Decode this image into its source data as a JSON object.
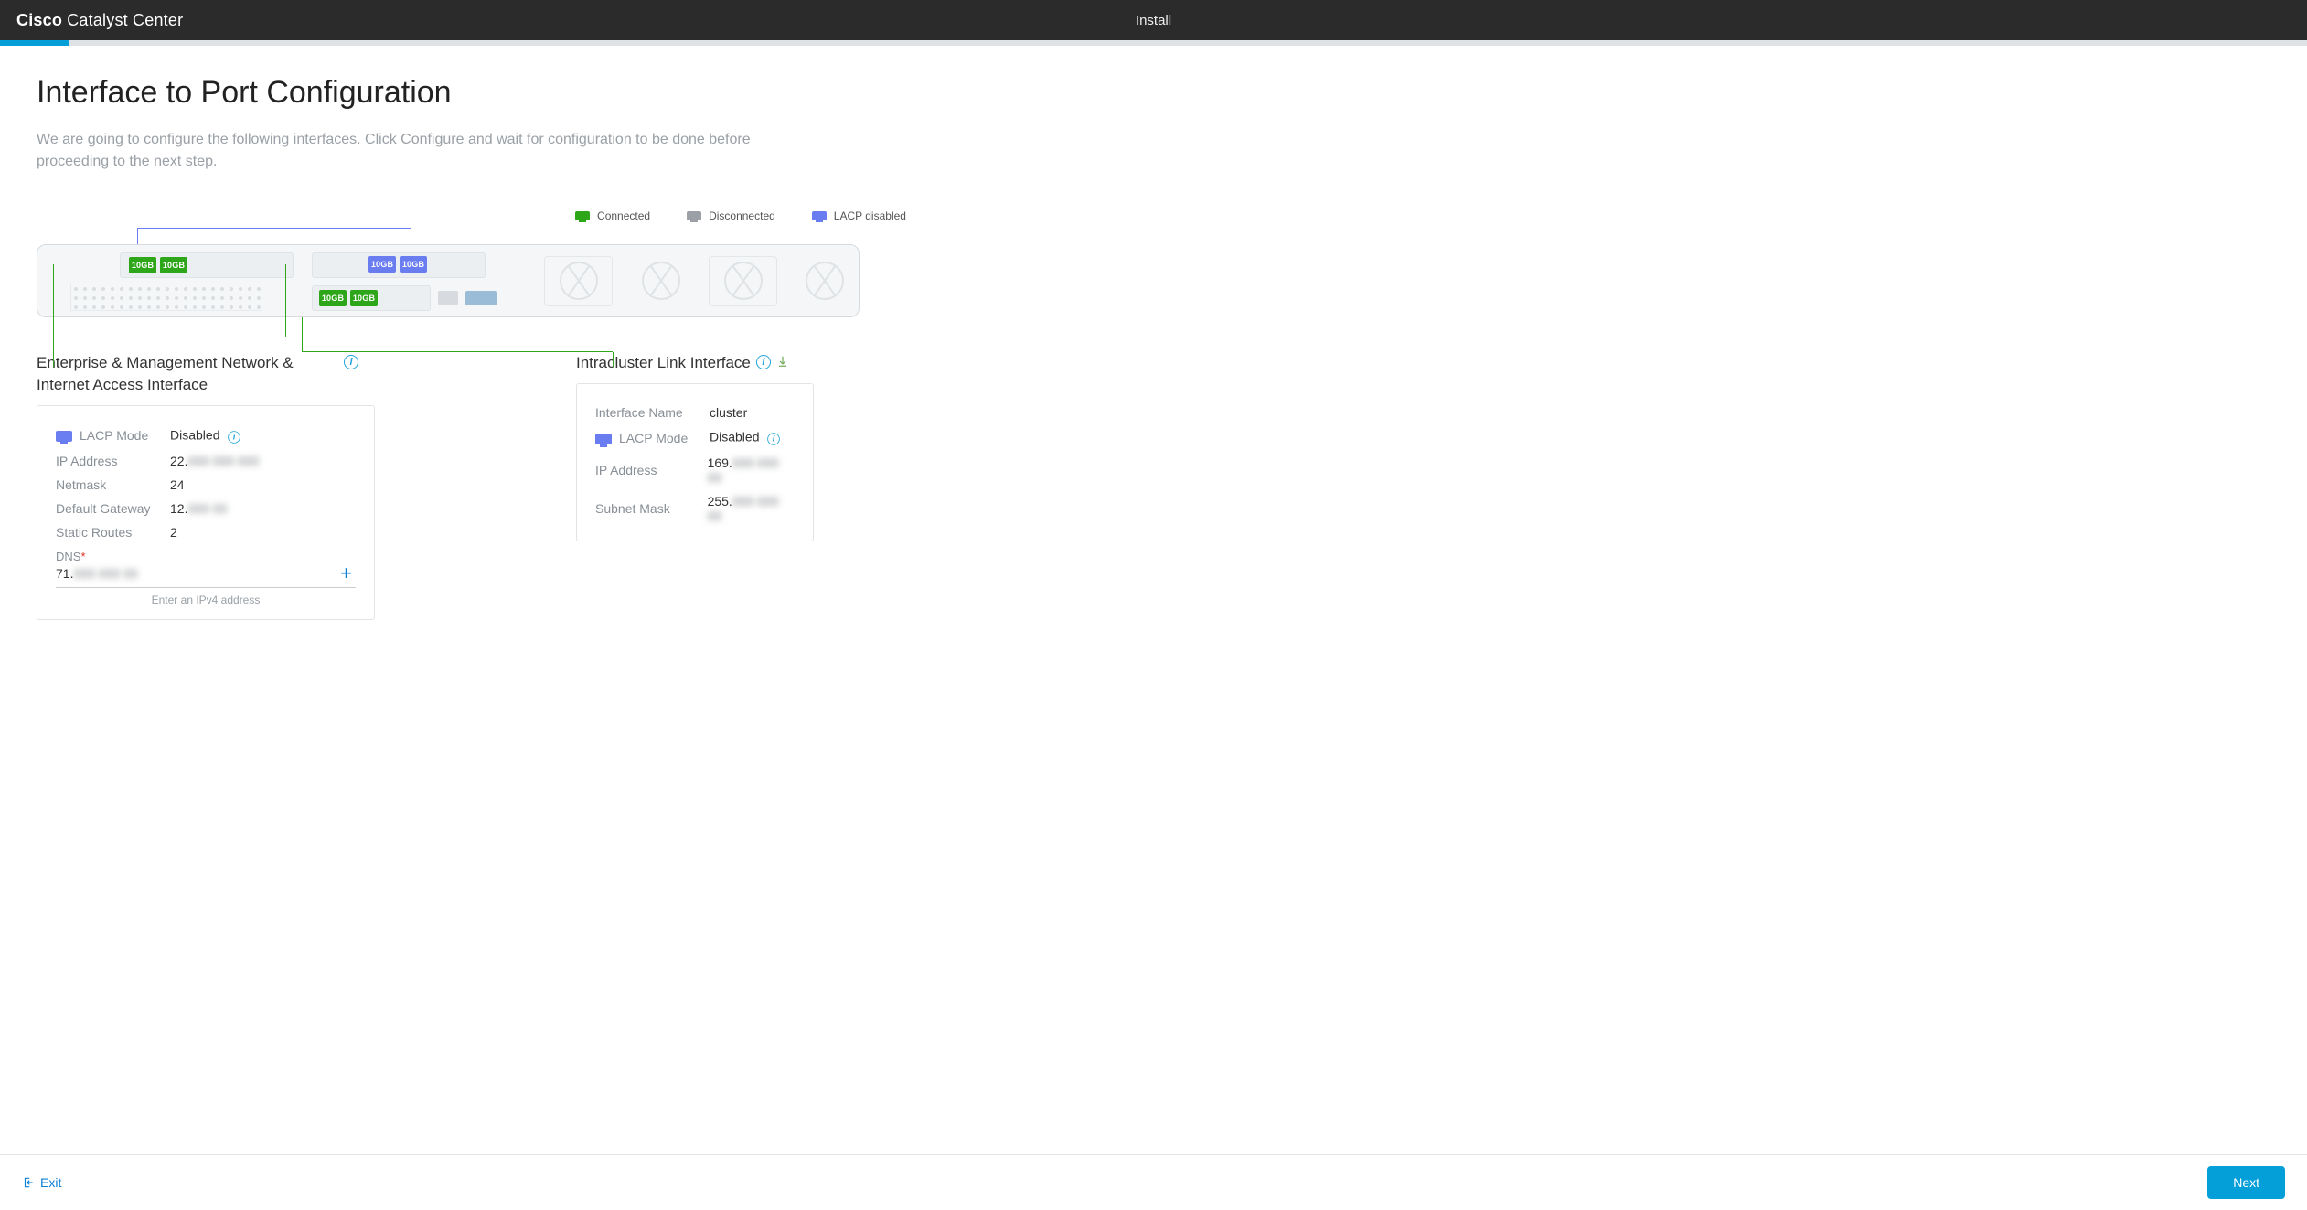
{
  "header": {
    "brand_bold": "Cisco",
    "brand_light": "Catalyst Center",
    "title": "Install"
  },
  "progress": {
    "percent": 3,
    "bar_color": "#049fd9",
    "track_color": "#e0e3e6"
  },
  "page": {
    "title": "Interface to Port Configuration",
    "description": "We are going to configure the following interfaces. Click Configure and wait for configuration to be done before proceeding to the next step."
  },
  "legend": {
    "connected": {
      "label": "Connected",
      "color": "#2ea619"
    },
    "disconnected": {
      "label": "Disconnected",
      "color": "#9aa0a6"
    },
    "lacp": {
      "label": "LACP disabled",
      "color": "#6a7df0"
    }
  },
  "ports": {
    "label_10gb": "10GB",
    "top_green": {
      "count": 2,
      "color": "#2ea619"
    },
    "top_blue": {
      "count": 2,
      "color": "#6a7df0"
    },
    "bottom_green": {
      "count": 2,
      "color": "#2ea619"
    }
  },
  "enterprise": {
    "title": "Enterprise & Management Network & Internet Access Interface",
    "lacp_mode_label": "LACP Mode",
    "lacp_mode_value": "Disabled",
    "ip_label": "IP Address",
    "ip_value_visible": "22.",
    "ip_value_blur": "000 000 000",
    "netmask_label": "Netmask",
    "netmask_value": "24",
    "gateway_label": "Default Gateway",
    "gateway_value_visible": "12.",
    "gateway_value_blur": "000 00",
    "static_routes_label": "Static Routes",
    "static_routes_value": "2",
    "dns_label": "DNS",
    "dns_value_visible": "71.",
    "dns_value_blur": "000 000 00",
    "dns_hint": "Enter an IPv4 address"
  },
  "cluster": {
    "title": "Intracluster Link Interface",
    "iface_name_label": "Interface Name",
    "iface_name_value": "cluster",
    "lacp_mode_label": "LACP Mode",
    "lacp_mode_value": "Disabled",
    "ip_label": "IP Address",
    "ip_value_visible": "169.",
    "ip_value_blur": "000 000 00",
    "subnet_label": "Subnet Mask",
    "subnet_value_visible": "255.",
    "subnet_value_blur": "000 000 00"
  },
  "footer": {
    "exit": "Exit",
    "next": "Next"
  }
}
